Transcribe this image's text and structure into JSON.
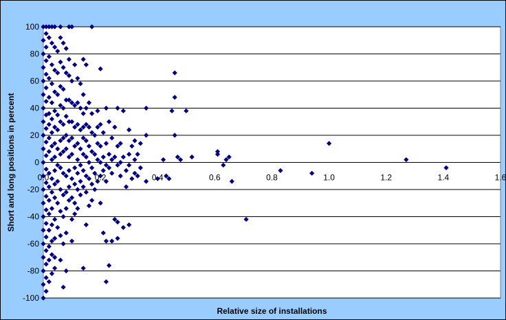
{
  "chart_data": {
    "type": "scatter",
    "title": "",
    "xlabel": "Relative size of installations",
    "ylabel": "Short and long positions in percent",
    "xlim": [
      0,
      1.6
    ],
    "ylim": [
      -100,
      100
    ],
    "x_ticks": [
      "0.0",
      "0.2",
      "0.4",
      "0.6",
      "0.8",
      "1.0",
      "1.2",
      "1.4",
      "1.6"
    ],
    "y_ticks": [
      "-100",
      "-80",
      "-60",
      "-40",
      "-20",
      "0",
      "20",
      "40",
      "60",
      "80",
      "100"
    ],
    "grid": "horizontal",
    "legend": "none",
    "colors": {
      "chart_area": "#99ccff",
      "plot_area": "#ffffff",
      "marker": "#000080",
      "gridline": "#000000"
    },
    "series": [
      {
        "marker": "diamond",
        "points": [
          [
            0.0,
            100
          ],
          [
            0.01,
            100
          ],
          [
            0.02,
            100
          ],
          [
            0.03,
            100
          ],
          [
            0.04,
            100
          ],
          [
            0.06,
            100
          ],
          [
            0.09,
            100
          ],
          [
            0.1,
            100
          ],
          [
            0.17,
            100
          ],
          [
            0.0,
            90
          ],
          [
            0.0,
            80
          ],
          [
            0.0,
            70
          ],
          [
            0.0,
            60
          ],
          [
            0.0,
            50
          ],
          [
            0.0,
            40
          ],
          [
            0.0,
            30
          ],
          [
            0.0,
            20
          ],
          [
            0.0,
            10
          ],
          [
            0.0,
            0
          ],
          [
            0.0,
            -10
          ],
          [
            0.0,
            -20
          ],
          [
            0.0,
            -30
          ],
          [
            0.0,
            -40
          ],
          [
            0.0,
            -50
          ],
          [
            0.0,
            -60
          ],
          [
            0.0,
            -70
          ],
          [
            0.0,
            -80
          ],
          [
            0.0,
            -90
          ],
          [
            0.0,
            -100
          ],
          [
            0.01,
            95
          ],
          [
            0.01,
            85
          ],
          [
            0.01,
            75
          ],
          [
            0.01,
            65
          ],
          [
            0.01,
            55
          ],
          [
            0.01,
            45
          ],
          [
            0.01,
            35
          ],
          [
            0.01,
            25
          ],
          [
            0.01,
            15
          ],
          [
            0.01,
            5
          ],
          [
            0.01,
            -5
          ],
          [
            0.01,
            -15
          ],
          [
            0.01,
            -25
          ],
          [
            0.01,
            -35
          ],
          [
            0.01,
            -45
          ],
          [
            0.01,
            -55
          ],
          [
            0.01,
            -65
          ],
          [
            0.01,
            -75
          ],
          [
            0.01,
            -85
          ],
          [
            0.01,
            -95
          ],
          [
            0.02,
            92
          ],
          [
            0.02,
            78
          ],
          [
            0.02,
            62
          ],
          [
            0.02,
            48
          ],
          [
            0.02,
            36
          ],
          [
            0.02,
            28
          ],
          [
            0.02,
            18
          ],
          [
            0.02,
            8
          ],
          [
            0.02,
            -8
          ],
          [
            0.02,
            -18
          ],
          [
            0.02,
            -28
          ],
          [
            0.02,
            -38
          ],
          [
            0.02,
            -50
          ],
          [
            0.02,
            -62
          ],
          [
            0.02,
            -72
          ],
          [
            0.02,
            -88
          ],
          [
            0.03,
            88
          ],
          [
            0.03,
            72
          ],
          [
            0.03,
            58
          ],
          [
            0.03,
            44
          ],
          [
            0.03,
            32
          ],
          [
            0.03,
            22
          ],
          [
            0.03,
            12
          ],
          [
            0.03,
            2
          ],
          [
            0.03,
            -12
          ],
          [
            0.03,
            -22
          ],
          [
            0.03,
            -34
          ],
          [
            0.03,
            -46
          ],
          [
            0.03,
            -58
          ],
          [
            0.03,
            -68
          ],
          [
            0.03,
            -82
          ],
          [
            0.04,
            85
          ],
          [
            0.04,
            68
          ],
          [
            0.04,
            52
          ],
          [
            0.04,
            38
          ],
          [
            0.04,
            26
          ],
          [
            0.04,
            14
          ],
          [
            0.04,
            4
          ],
          [
            0.04,
            -6
          ],
          [
            0.04,
            -16
          ],
          [
            0.04,
            -26
          ],
          [
            0.04,
            -42
          ],
          [
            0.04,
            -56
          ],
          [
            0.04,
            -70
          ],
          [
            0.04,
            -78
          ],
          [
            0.05,
            82
          ],
          [
            0.05,
            66
          ],
          [
            0.05,
            50
          ],
          [
            0.05,
            35
          ],
          [
            0.05,
            24
          ],
          [
            0.05,
            10
          ],
          [
            0.05,
            -2
          ],
          [
            0.05,
            -14
          ],
          [
            0.05,
            -30
          ],
          [
            0.05,
            -48
          ],
          [
            0.06,
            92
          ],
          [
            0.06,
            74
          ],
          [
            0.06,
            56
          ],
          [
            0.06,
            42
          ],
          [
            0.06,
            30
          ],
          [
            0.06,
            16
          ],
          [
            0.06,
            6
          ],
          [
            0.06,
            -4
          ],
          [
            0.06,
            -20
          ],
          [
            0.06,
            -36
          ],
          [
            0.06,
            -54
          ],
          [
            0.06,
            -72
          ],
          [
            0.07,
            88
          ],
          [
            0.07,
            70
          ],
          [
            0.07,
            54
          ],
          [
            0.07,
            40
          ],
          [
            0.07,
            28
          ],
          [
            0.07,
            18
          ],
          [
            0.07,
            8
          ],
          [
            0.07,
            -8
          ],
          [
            0.07,
            -24
          ],
          [
            0.07,
            -40
          ],
          [
            0.07,
            -60
          ],
          [
            0.07,
            -92
          ],
          [
            0.08,
            84
          ],
          [
            0.08,
            66
          ],
          [
            0.08,
            46
          ],
          [
            0.08,
            34
          ],
          [
            0.08,
            20
          ],
          [
            0.08,
            10
          ],
          [
            0.08,
            -10
          ],
          [
            0.08,
            -22
          ],
          [
            0.08,
            -34
          ],
          [
            0.08,
            -52
          ],
          [
            0.08,
            -80
          ],
          [
            0.09,
            76
          ],
          [
            0.09,
            64
          ],
          [
            0.09,
            46
          ],
          [
            0.09,
            30
          ],
          [
            0.09,
            16
          ],
          [
            0.09,
            4
          ],
          [
            0.09,
            -6
          ],
          [
            0.09,
            -18
          ],
          [
            0.09,
            -28
          ],
          [
            0.1,
            60
          ],
          [
            0.1,
            44
          ],
          [
            0.1,
            30
          ],
          [
            0.1,
            18
          ],
          [
            0.1,
            6
          ],
          [
            0.1,
            -12
          ],
          [
            0.1,
            -26
          ],
          [
            0.1,
            -42
          ],
          [
            0.1,
            -58
          ],
          [
            0.11,
            72
          ],
          [
            0.11,
            42
          ],
          [
            0.11,
            26
          ],
          [
            0.11,
            12
          ],
          [
            0.11,
            -4
          ],
          [
            0.11,
            -16
          ],
          [
            0.11,
            -30
          ],
          [
            0.11,
            -38
          ],
          [
            0.12,
            62
          ],
          [
            0.12,
            44
          ],
          [
            0.12,
            28
          ],
          [
            0.12,
            14
          ],
          [
            0.12,
            2
          ],
          [
            0.12,
            -8
          ],
          [
            0.12,
            -20
          ],
          [
            0.12,
            -34
          ],
          [
            0.13,
            58
          ],
          [
            0.13,
            40
          ],
          [
            0.13,
            24
          ],
          [
            0.13,
            10
          ],
          [
            0.13,
            -2
          ],
          [
            0.13,
            -14
          ],
          [
            0.13,
            -24
          ],
          [
            0.14,
            76
          ],
          [
            0.14,
            50
          ],
          [
            0.14,
            36
          ],
          [
            0.14,
            26
          ],
          [
            0.14,
            18
          ],
          [
            0.14,
            6
          ],
          [
            0.14,
            -6
          ],
          [
            0.14,
            -18
          ],
          [
            0.14,
            -78
          ],
          [
            0.15,
            72
          ],
          [
            0.15,
            40
          ],
          [
            0.15,
            28
          ],
          [
            0.15,
            16
          ],
          [
            0.15,
            4
          ],
          [
            0.15,
            -10
          ],
          [
            0.15,
            -22
          ],
          [
            0.15,
            -46
          ],
          [
            0.16,
            44
          ],
          [
            0.16,
            26
          ],
          [
            0.16,
            12
          ],
          [
            0.16,
            0
          ],
          [
            0.16,
            -12
          ],
          [
            0.16,
            -32
          ],
          [
            0.17,
            36
          ],
          [
            0.17,
            22
          ],
          [
            0.17,
            8
          ],
          [
            0.17,
            -4
          ],
          [
            0.17,
            -16
          ],
          [
            0.17,
            -28
          ],
          [
            0.18,
            20
          ],
          [
            0.18,
            6
          ],
          [
            0.18,
            -8
          ],
          [
            0.18,
            -20
          ],
          [
            0.19,
            38
          ],
          [
            0.19,
            26
          ],
          [
            0.19,
            14
          ],
          [
            0.19,
            2
          ],
          [
            0.19,
            -14
          ],
          [
            0.2,
            69
          ],
          [
            0.2,
            28
          ],
          [
            0.2,
            12
          ],
          [
            0.2,
            0
          ],
          [
            0.2,
            -10
          ],
          [
            0.2,
            -30
          ],
          [
            0.21,
            22
          ],
          [
            0.21,
            4
          ],
          [
            0.21,
            -6
          ],
          [
            0.21,
            -52
          ],
          [
            0.22,
            40
          ],
          [
            0.22,
            14
          ],
          [
            0.22,
            -2
          ],
          [
            0.22,
            -14
          ],
          [
            0.22,
            -58
          ],
          [
            0.22,
            -88
          ],
          [
            0.23,
            30
          ],
          [
            0.23,
            6
          ],
          [
            0.23,
            -4
          ],
          [
            0.23,
            -76
          ],
          [
            0.24,
            18
          ],
          [
            0.24,
            2
          ],
          [
            0.24,
            -8
          ],
          [
            0.24,
            -58
          ],
          [
            0.25,
            26
          ],
          [
            0.25,
            4
          ],
          [
            0.25,
            -42
          ],
          [
            0.26,
            40
          ],
          [
            0.26,
            12
          ],
          [
            0.26,
            -2
          ],
          [
            0.26,
            -44
          ],
          [
            0.26,
            -56
          ],
          [
            0.27,
            14
          ],
          [
            0.27,
            0
          ],
          [
            0.27,
            -10
          ],
          [
            0.28,
            38
          ],
          [
            0.28,
            4
          ],
          [
            0.28,
            -48
          ],
          [
            0.29,
            -6
          ],
          [
            0.29,
            -18
          ],
          [
            0.3,
            24
          ],
          [
            0.3,
            6
          ],
          [
            0.3,
            -2
          ],
          [
            0.3,
            -46
          ],
          [
            0.31,
            12
          ],
          [
            0.31,
            -12
          ],
          [
            0.32,
            16
          ],
          [
            0.32,
            2
          ],
          [
            0.32,
            -8
          ],
          [
            0.33,
            6
          ],
          [
            0.33,
            -10
          ],
          [
            0.34,
            14
          ],
          [
            0.34,
            -4
          ],
          [
            0.36,
            40
          ],
          [
            0.36,
            20
          ],
          [
            0.36,
            -14
          ],
          [
            0.4,
            -12
          ],
          [
            0.42,
            2
          ],
          [
            0.43,
            -10
          ],
          [
            0.44,
            -12
          ],
          [
            0.45,
            38
          ],
          [
            0.46,
            66
          ],
          [
            0.46,
            48
          ],
          [
            0.46,
            20
          ],
          [
            0.47,
            4
          ],
          [
            0.48,
            2
          ],
          [
            0.5,
            38
          ],
          [
            0.52,
            4
          ],
          [
            0.61,
            8
          ],
          [
            0.61,
            6
          ],
          [
            0.63,
            -2
          ],
          [
            0.64,
            2
          ],
          [
            0.65,
            4
          ],
          [
            0.66,
            -14
          ],
          [
            0.71,
            -42
          ],
          [
            0.83,
            -6
          ],
          [
            0.94,
            -8
          ],
          [
            1.0,
            14
          ],
          [
            1.27,
            2
          ],
          [
            1.41,
            -4
          ]
        ]
      }
    ]
  }
}
